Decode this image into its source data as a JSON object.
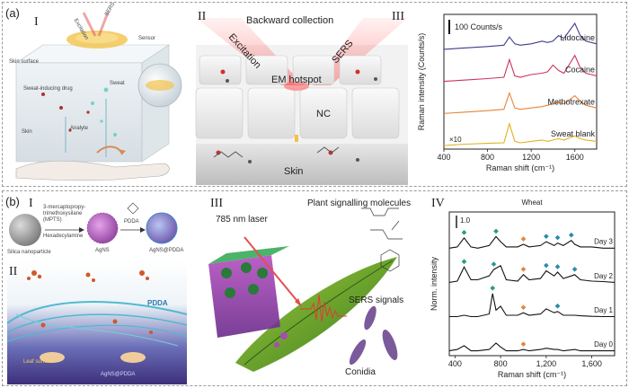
{
  "panel_a": {
    "label": "(a)",
    "sub_I": "I",
    "sub_II": "II",
    "sub_III": "III",
    "illustration": {
      "excitation": "Excitation",
      "sers": "SERS",
      "sensor": "Sensor",
      "skin_surface": "Skin surface",
      "sweat_inducing_drug": "Sweat-inducing drug",
      "sweat": "Sweat",
      "skin": "Skin",
      "analyte": "Analyte"
    },
    "schematic": {
      "backward_collection": "Backward collection",
      "excitation": "Excitation",
      "sers": "SERS",
      "em_hotspot": "EM hotspot",
      "nc": "NC",
      "skin": "Skin"
    }
  },
  "panel_b": {
    "label": "(b)",
    "sub_I": "I",
    "sub_II": "II",
    "sub_III": "III",
    "sub_IV": "IV",
    "synthesis": {
      "reagent1_line1": "3-mercaptopropy-",
      "reagent1_line2": "trimethoxysilane",
      "reagent1_line3": "(MPTS)",
      "reagent2": "Hexadecylamine",
      "reagent3": "PDDA",
      "silica": "Silica nanoparticle",
      "agns": "AgNS",
      "agns_pdda": "AgNS@PDDA"
    },
    "leaf": {
      "pdda": "PDDA",
      "laser": "785 nm laser",
      "plant_signalling": "Plant signalling molecules",
      "sers_signals": "SERS signals",
      "conidia": "Conidia",
      "leaf_surface": "Leaf surface",
      "agns_pdda": "AgNS@PDDA"
    }
  },
  "chart_data": [
    {
      "type": "line",
      "title": "",
      "xlabel": "Raman shift (cm⁻¹)",
      "ylabel": "Raman intensity (Counts/s)",
      "xlim": [
        400,
        1800
      ],
      "xticks": [
        400,
        800,
        1200,
        1600
      ],
      "scale_bar": "100 Counts/s",
      "multiplier_label": "×10",
      "series": [
        {
          "name": "Lidocaine",
          "color": "#3d3d8f",
          "offset": 3.0,
          "x": [
            400,
            600,
            800,
            950,
            1000,
            1050,
            1100,
            1200,
            1300,
            1350,
            1400,
            1450,
            1500,
            1600,
            1650,
            1700,
            1800
          ],
          "y": [
            0,
            0.05,
            0.1,
            0.15,
            0.45,
            0.2,
            0.15,
            0.2,
            0.3,
            0.25,
            0.3,
            0.5,
            0.4,
            0.95,
            0.5,
            0.3,
            0.2
          ]
        },
        {
          "name": "Cocaine",
          "color": "#d0325a",
          "offset": 2.0,
          "x": [
            400,
            600,
            800,
            950,
            1000,
            1050,
            1100,
            1200,
            1300,
            1350,
            1400,
            1450,
            1500,
            1600,
            1650,
            1700,
            1800
          ],
          "y": [
            0,
            0.05,
            0.1,
            0.15,
            0.8,
            0.2,
            0.15,
            0.25,
            0.3,
            0.35,
            0.6,
            0.4,
            0.3,
            0.95,
            0.5,
            0.3,
            0.2
          ]
        },
        {
          "name": "Methotrexate",
          "color": "#e8843a",
          "offset": 1.0,
          "x": [
            400,
            600,
            800,
            950,
            1000,
            1050,
            1100,
            1200,
            1300,
            1350,
            1400,
            1450,
            1500,
            1600,
            1650,
            1700,
            1800
          ],
          "y": [
            0,
            0.05,
            0.1,
            0.15,
            0.75,
            0.2,
            0.15,
            0.2,
            0.25,
            0.3,
            0.35,
            0.4,
            0.35,
            0.65,
            0.45,
            0.3,
            0.2
          ]
        },
        {
          "name": "Sweat blank",
          "color": "#e0b21e",
          "offset": 0.0,
          "x": [
            400,
            600,
            800,
            950,
            1000,
            1050,
            1100,
            1200,
            1300,
            1350,
            1400,
            1450,
            1500,
            1600,
            1650,
            1700,
            1800
          ],
          "y": [
            0,
            0.05,
            0.08,
            0.1,
            0.8,
            0.15,
            0.1,
            0.15,
            0.2,
            0.15,
            0.2,
            0.25,
            0.2,
            0.35,
            0.25,
            0.2,
            0.15
          ]
        }
      ]
    },
    {
      "type": "line",
      "title": "Wheat",
      "xlabel": "Raman shift (cm⁻¹)",
      "ylabel": "Norm. intensity",
      "xlim": [
        350,
        1800
      ],
      "xticks": [
        400,
        800,
        1200,
        1600
      ],
      "xticklabels": [
        "400",
        "800",
        "1,200",
        "1,600"
      ],
      "scale_bar": "1.0",
      "series": [
        {
          "name": "Day 3",
          "color": "#111111",
          "offset": 3.0,
          "x": [
            350,
            420,
            480,
            540,
            600,
            700,
            760,
            800,
            850,
            950,
            1000,
            1050,
            1150,
            1200,
            1270,
            1300,
            1350,
            1420,
            1450,
            1500,
            1600,
            1700,
            1800
          ],
          "y": [
            0.05,
            0.1,
            0.45,
            0.1,
            0.05,
            0.15,
            0.5,
            0.3,
            0.1,
            0.1,
            0.2,
            0.1,
            0.15,
            0.3,
            0.15,
            0.25,
            0.15,
            0.35,
            0.2,
            0.1,
            0.1,
            0.05,
            0.05
          ]
        },
        {
          "name": "Day 2",
          "color": "#111111",
          "offset": 2.0,
          "x": [
            350,
            420,
            480,
            540,
            600,
            700,
            740,
            800,
            850,
            950,
            1000,
            1050,
            1150,
            1200,
            1270,
            1300,
            1350,
            1420,
            1450,
            1500,
            1600,
            1700,
            1800
          ],
          "y": [
            0.05,
            0.1,
            0.65,
            0.15,
            0.15,
            0.3,
            0.55,
            0.7,
            0.15,
            0.1,
            0.35,
            0.15,
            0.2,
            0.5,
            0.3,
            0.45,
            0.2,
            0.3,
            0.35,
            0.15,
            0.1,
            0.08,
            0.05
          ]
        },
        {
          "name": "Day 1",
          "color": "#111111",
          "offset": 1.0,
          "x": [
            350,
            420,
            480,
            540,
            600,
            700,
            730,
            760,
            800,
            850,
            950,
            1000,
            1050,
            1150,
            1200,
            1270,
            1300,
            1350,
            1450,
            1500,
            1600,
            1700,
            1800
          ],
          "y": [
            0.05,
            0.05,
            0.1,
            0.05,
            0.05,
            0.15,
            0.95,
            0.3,
            0.45,
            0.1,
            0.1,
            0.2,
            0.1,
            0.15,
            0.35,
            0.2,
            0.25,
            0.1,
            0.1,
            0.08,
            0.06,
            0.05,
            0.05
          ]
        },
        {
          "name": "Day 0",
          "color": "#111111",
          "offset": 0.0,
          "x": [
            350,
            420,
            480,
            540,
            600,
            700,
            760,
            800,
            850,
            950,
            1000,
            1050,
            1150,
            1200,
            1270,
            1300,
            1350,
            1450,
            1500,
            1600,
            1700,
            1800
          ],
          "y": [
            0.05,
            0.1,
            0.25,
            0.05,
            0.05,
            0.1,
            0.35,
            0.2,
            0.05,
            0.05,
            0.1,
            0.05,
            0.1,
            0.15,
            0.1,
            0.1,
            0.05,
            0.1,
            0.05,
            0.05,
            0.05,
            0.05
          ]
        }
      ],
      "peak_markers": [
        {
          "day": "Day 3",
          "x": 480,
          "color": "#2a9a8a"
        },
        {
          "day": "Day 3",
          "x": 760,
          "color": "#2a9a8a"
        },
        {
          "day": "Day 3",
          "x": 1000,
          "color": "#e8843a"
        },
        {
          "day": "Day 3",
          "x": 1200,
          "color": "#2a8ab0"
        },
        {
          "day": "Day 3",
          "x": 1300,
          "color": "#2a8ab0"
        },
        {
          "day": "Day 3",
          "x": 1420,
          "color": "#2a8ab0"
        },
        {
          "day": "Day 2",
          "x": 480,
          "color": "#2a9a8a"
        },
        {
          "day": "Day 2",
          "x": 740,
          "color": "#2a9a8a"
        },
        {
          "day": "Day 2",
          "x": 1000,
          "color": "#e8843a"
        },
        {
          "day": "Day 2",
          "x": 1200,
          "color": "#2a8ab0"
        },
        {
          "day": "Day 2",
          "x": 1300,
          "color": "#2a8ab0"
        },
        {
          "day": "Day 2",
          "x": 1450,
          "color": "#2a8ab0"
        },
        {
          "day": "Day 1",
          "x": 730,
          "color": "#2a9a8a"
        },
        {
          "day": "Day 1",
          "x": 1000,
          "color": "#e8843a"
        },
        {
          "day": "Day 1",
          "x": 1300,
          "color": "#2a8ab0"
        },
        {
          "day": "Day 0",
          "x": 1000,
          "color": "#e8843a"
        }
      ]
    }
  ]
}
